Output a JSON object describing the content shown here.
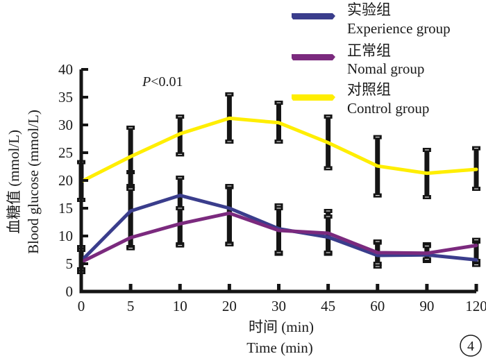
{
  "chart_data": {
    "type": "line",
    "title": "",
    "xlabel": [
      "时间 (min)",
      "Time  (min)"
    ],
    "ylabel": [
      "血糖值 (mmol/L)",
      "Blood glucose (mmol/L)"
    ],
    "x": [
      "0",
      "5",
      "10",
      "20",
      "30",
      "45",
      "60",
      "90",
      "120"
    ],
    "x_axis_type": "categorical",
    "ylim": [
      0,
      40
    ],
    "yticks": [
      0,
      5,
      10,
      15,
      20,
      25,
      30,
      35,
      40
    ],
    "grid": false,
    "legend_position": "top-right",
    "annotation": {
      "italic_part": "P",
      "rest": "<0.01"
    },
    "panel_label": "4",
    "series": [
      {
        "name_zh": "实验组",
        "name": "Experience group",
        "color": "#3a3d8c",
        "values": [
          5.5,
          14.5,
          17.3,
          15.0,
          11.3,
          9.8,
          6.5,
          6.6,
          5.7
        ],
        "error_low": [
          3.5,
          8.0,
          8.5,
          8.6,
          6.8,
          6.8,
          4.5,
          5.5,
          4.8
        ],
        "error_high": [
          8.0,
          21.5,
          20.5,
          18.8,
          15.5,
          14.5,
          8.8,
          8.5,
          9.0
        ]
      },
      {
        "name_zh": "正常组",
        "name": "Nomal group",
        "color": "#7b2a7e",
        "values": [
          5.3,
          9.7,
          12.2,
          14.1,
          11.0,
          10.5,
          7.0,
          6.9,
          8.3
        ],
        "error_low": [
          4.0,
          7.8,
          8.3,
          8.5,
          7.0,
          7.0,
          5.0,
          5.8,
          5.5
        ],
        "error_high": [
          7.5,
          19.0,
          15.0,
          19.0,
          15.0,
          13.5,
          9.0,
          8.2,
          9.3
        ]
      },
      {
        "name_zh": "对照组",
        "name": "Control group",
        "color": "#ffee00",
        "values": [
          19.8,
          24.3,
          28.4,
          31.2,
          30.4,
          26.8,
          22.6,
          21.3,
          22.0
        ],
        "error_low": [
          16.5,
          18.5,
          24.7,
          27.0,
          27.0,
          22.2,
          17.3,
          17.0,
          18.5
        ],
        "error_high": [
          23.3,
          29.5,
          31.5,
          35.5,
          34.0,
          31.5,
          27.8,
          25.5,
          25.8
        ]
      }
    ]
  }
}
